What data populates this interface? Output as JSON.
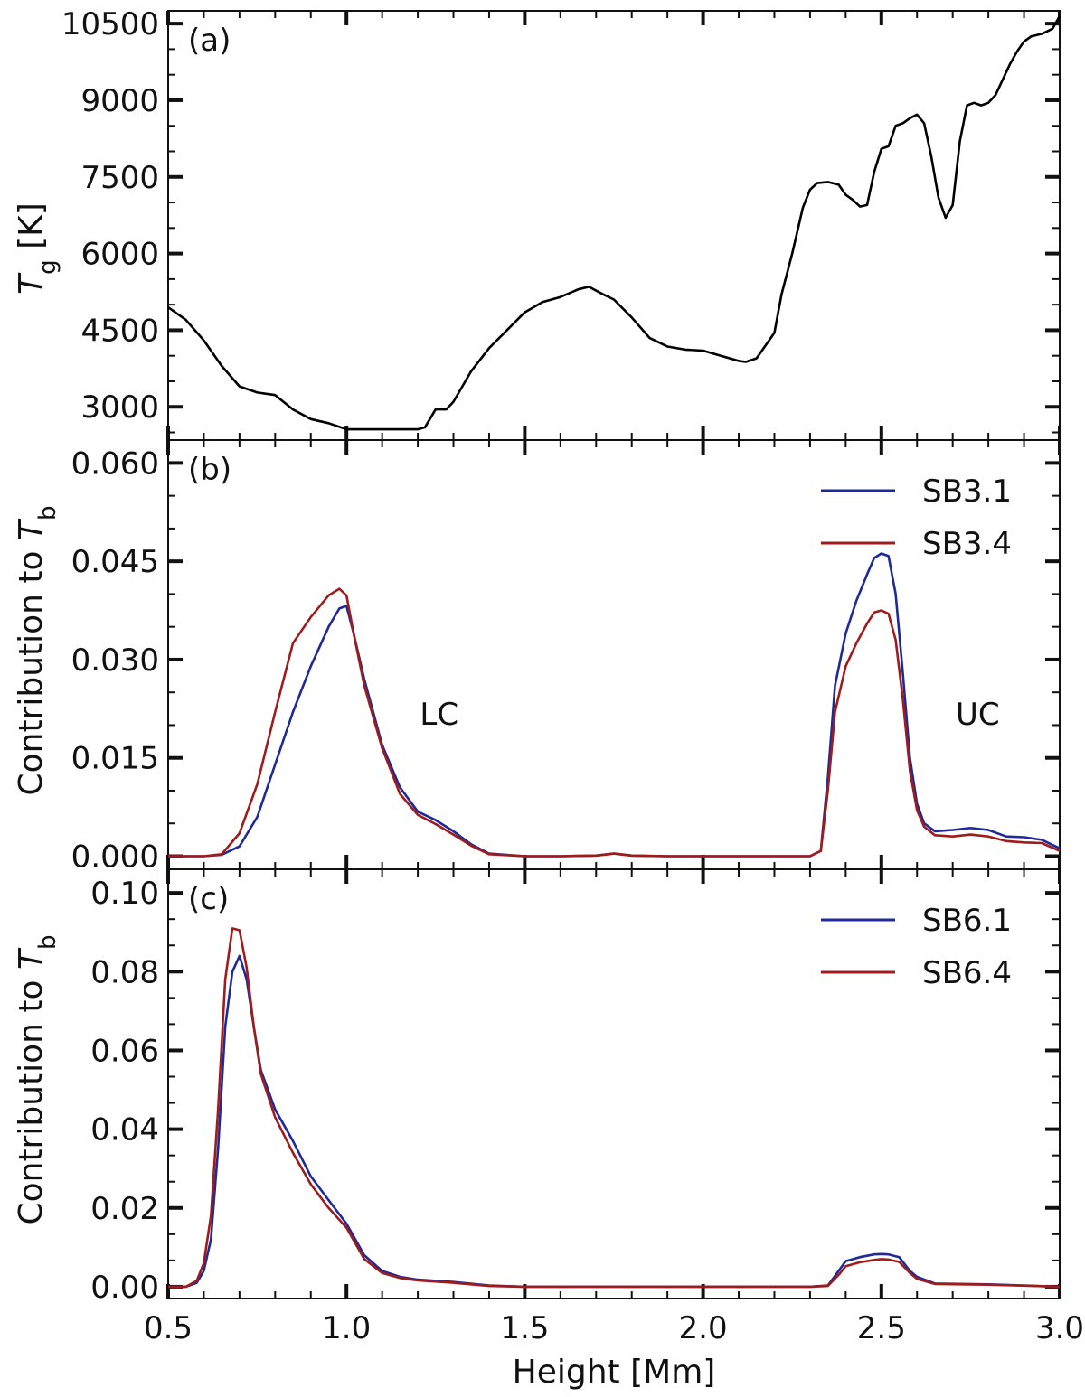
{
  "chart_data": [
    {
      "type": "line",
      "panel_label": "(a)",
      "ylabel": "T",
      "ylabel_sub": "g",
      "ylabel_unit": " [K]",
      "xlim": [
        0.5,
        3.0
      ],
      "ylim": [
        2350,
        10750
      ],
      "yticks": [
        "3000",
        "4500",
        "6000",
        "7500",
        "9000",
        "10500"
      ],
      "ytick_values": [
        3000,
        4500,
        6000,
        7500,
        9000,
        10500
      ],
      "series": [
        {
          "color": "#000000",
          "x": [
            0.5,
            0.55,
            0.6,
            0.65,
            0.7,
            0.75,
            0.8,
            0.85,
            0.9,
            0.95,
            1.0,
            1.05,
            1.1,
            1.15,
            1.2,
            1.22,
            1.25,
            1.28,
            1.3,
            1.35,
            1.4,
            1.45,
            1.5,
            1.55,
            1.6,
            1.65,
            1.68,
            1.72,
            1.75,
            1.8,
            1.85,
            1.9,
            1.95,
            2.0,
            2.05,
            2.1,
            2.12,
            2.15,
            2.2,
            2.22,
            2.25,
            2.28,
            2.3,
            2.32,
            2.35,
            2.38,
            2.4,
            2.42,
            2.44,
            2.46,
            2.48,
            2.5,
            2.52,
            2.54,
            2.56,
            2.58,
            2.6,
            2.62,
            2.64,
            2.66,
            2.68,
            2.7,
            2.72,
            2.74,
            2.76,
            2.78,
            2.8,
            2.82,
            2.84,
            2.86,
            2.88,
            2.9,
            2.92,
            2.95,
            2.98,
            3.0
          ],
          "y": [
            4950,
            4700,
            4300,
            3800,
            3400,
            3280,
            3230,
            2950,
            2760,
            2680,
            2560,
            2560,
            2560,
            2560,
            2560,
            2600,
            2950,
            2950,
            3100,
            3700,
            4150,
            4500,
            4850,
            5050,
            5150,
            5300,
            5350,
            5200,
            5100,
            4750,
            4350,
            4180,
            4120,
            4100,
            4000,
            3900,
            3880,
            3950,
            4450,
            5200,
            6000,
            6900,
            7250,
            7380,
            7400,
            7350,
            7150,
            7050,
            6920,
            6950,
            7600,
            8050,
            8100,
            8500,
            8550,
            8650,
            8720,
            8550,
            7900,
            7100,
            6700,
            6950,
            8200,
            8900,
            8950,
            8900,
            8950,
            9100,
            9400,
            9700,
            9950,
            10150,
            10250,
            10300,
            10400,
            10650
          ]
        }
      ]
    },
    {
      "type": "line",
      "panel_label": "(b)",
      "ylabel": "Contribution to ",
      "ylabel_var": "T",
      "ylabel_sub": "b",
      "xlim": [
        0.5,
        3.0
      ],
      "ylim": [
        -0.002,
        0.0635
      ],
      "yticks": [
        "0.000",
        "0.015",
        "0.030",
        "0.045",
        "0.060"
      ],
      "ytick_values": [
        0.0,
        0.015,
        0.03,
        0.045,
        0.06
      ],
      "annotations": [
        {
          "text": "LC",
          "x": 1.26,
          "y": 0.0217
        },
        {
          "text": "UC",
          "x": 2.77,
          "y": 0.0217
        }
      ],
      "legend_position": "top-right",
      "series": [
        {
          "name": "SB3.1",
          "color": "#1f2a99",
          "x": [
            0.5,
            0.6,
            0.65,
            0.7,
            0.75,
            0.8,
            0.85,
            0.9,
            0.95,
            0.98,
            1.0,
            1.02,
            1.05,
            1.1,
            1.15,
            1.2,
            1.25,
            1.3,
            1.35,
            1.4,
            1.5,
            1.6,
            1.7,
            1.75,
            1.8,
            1.9,
            2.0,
            2.1,
            2.2,
            2.3,
            2.33,
            2.35,
            2.37,
            2.4,
            2.43,
            2.46,
            2.48,
            2.5,
            2.52,
            2.54,
            2.56,
            2.58,
            2.6,
            2.62,
            2.65,
            2.7,
            2.75,
            2.8,
            2.85,
            2.9,
            2.95,
            3.0
          ],
          "y": [
            0.0,
            0.0,
            0.0002,
            0.0015,
            0.006,
            0.014,
            0.022,
            0.029,
            0.035,
            0.0378,
            0.0382,
            0.034,
            0.027,
            0.017,
            0.0105,
            0.0068,
            0.0055,
            0.0038,
            0.0018,
            0.0004,
            0.0,
            0.0,
            0.0001,
            0.0004,
            0.0001,
            0.0,
            0.0,
            0.0,
            0.0,
            0.0,
            0.0008,
            0.012,
            0.026,
            0.034,
            0.039,
            0.043,
            0.0455,
            0.0462,
            0.0458,
            0.04,
            0.028,
            0.015,
            0.008,
            0.005,
            0.0038,
            0.004,
            0.0043,
            0.004,
            0.003,
            0.0029,
            0.0025,
            0.0012
          ]
        },
        {
          "name": "SB3.4",
          "color": "#a01c1c",
          "x": [
            0.5,
            0.6,
            0.65,
            0.7,
            0.75,
            0.8,
            0.85,
            0.9,
            0.95,
            0.98,
            1.0,
            1.02,
            1.05,
            1.1,
            1.15,
            1.2,
            1.25,
            1.3,
            1.35,
            1.4,
            1.5,
            1.6,
            1.7,
            1.75,
            1.8,
            1.9,
            2.0,
            2.1,
            2.2,
            2.3,
            2.33,
            2.35,
            2.37,
            2.4,
            2.43,
            2.46,
            2.48,
            2.5,
            2.52,
            2.54,
            2.56,
            2.58,
            2.6,
            2.62,
            2.65,
            2.7,
            2.75,
            2.8,
            2.85,
            2.9,
            2.95,
            3.0
          ],
          "y": [
            0.0,
            0.0,
            0.0003,
            0.0035,
            0.011,
            0.022,
            0.0325,
            0.0365,
            0.0398,
            0.0408,
            0.0398,
            0.034,
            0.026,
            0.0165,
            0.0095,
            0.0063,
            0.0049,
            0.0033,
            0.0016,
            0.0003,
            0.0,
            0.0,
            0.0001,
            0.0004,
            0.0001,
            0.0,
            0.0,
            0.0,
            0.0,
            0.0,
            0.0008,
            0.01,
            0.022,
            0.029,
            0.0325,
            0.0355,
            0.0372,
            0.0375,
            0.037,
            0.033,
            0.024,
            0.013,
            0.007,
            0.0045,
            0.0032,
            0.003,
            0.0033,
            0.003,
            0.0023,
            0.0021,
            0.002,
            0.0008
          ]
        }
      ]
    },
    {
      "type": "line",
      "panel_label": "(c)",
      "xlabel": "Height [Mm]",
      "ylabel": "Contribution to ",
      "ylabel_var": "T",
      "ylabel_sub": "b",
      "xlim": [
        0.5,
        3.0
      ],
      "ylim": [
        -0.003,
        0.106
      ],
      "yticks": [
        "0.00",
        "0.02",
        "0.04",
        "0.06",
        "0.08",
        "0.10"
      ],
      "ytick_values": [
        0.0,
        0.02,
        0.04,
        0.06,
        0.08,
        0.1
      ],
      "xticks": [
        "0.5",
        "1.0",
        "1.5",
        "2.0",
        "2.5",
        "3.0"
      ],
      "xtick_values": [
        0.5,
        1.0,
        1.5,
        2.0,
        2.5,
        3.0
      ],
      "legend_position": "top-right",
      "series": [
        {
          "name": "SB6.1",
          "color": "#1f2a99",
          "x": [
            0.5,
            0.55,
            0.58,
            0.6,
            0.62,
            0.64,
            0.66,
            0.68,
            0.7,
            0.72,
            0.74,
            0.76,
            0.8,
            0.85,
            0.9,
            0.95,
            1.0,
            1.05,
            1.1,
            1.15,
            1.2,
            1.3,
            1.4,
            1.5,
            1.7,
            2.0,
            2.2,
            2.3,
            2.35,
            2.38,
            2.4,
            2.44,
            2.48,
            2.5,
            2.52,
            2.55,
            2.58,
            2.6,
            2.65,
            2.8,
            3.0
          ],
          "y": [
            0.0,
            0.0,
            0.001,
            0.004,
            0.012,
            0.035,
            0.066,
            0.08,
            0.084,
            0.078,
            0.066,
            0.055,
            0.045,
            0.037,
            0.028,
            0.022,
            0.016,
            0.008,
            0.004,
            0.0025,
            0.0018,
            0.0012,
            0.0003,
            0.0,
            0.0,
            0.0,
            0.0,
            0.0,
            0.0003,
            0.004,
            0.0065,
            0.0075,
            0.0082,
            0.0083,
            0.0082,
            0.0075,
            0.004,
            0.0025,
            0.0008,
            0.0006,
            0.0
          ]
        },
        {
          "name": "SB6.4",
          "color": "#a01c1c",
          "x": [
            0.5,
            0.55,
            0.58,
            0.6,
            0.62,
            0.64,
            0.66,
            0.68,
            0.7,
            0.72,
            0.74,
            0.76,
            0.8,
            0.85,
            0.9,
            0.95,
            1.0,
            1.05,
            1.1,
            1.15,
            1.2,
            1.3,
            1.4,
            1.5,
            1.7,
            2.0,
            2.2,
            2.3,
            2.35,
            2.38,
            2.4,
            2.44,
            2.48,
            2.5,
            2.52,
            2.55,
            2.58,
            2.6,
            2.65,
            2.8,
            3.0
          ],
          "y": [
            0.0,
            0.0,
            0.0015,
            0.006,
            0.018,
            0.045,
            0.078,
            0.091,
            0.0905,
            0.081,
            0.066,
            0.054,
            0.043,
            0.034,
            0.026,
            0.02,
            0.015,
            0.007,
            0.0035,
            0.0022,
            0.0016,
            0.001,
            0.0002,
            0.0,
            0.0,
            0.0,
            0.0,
            0.0,
            0.0002,
            0.003,
            0.0052,
            0.0062,
            0.0068,
            0.007,
            0.0069,
            0.0063,
            0.0035,
            0.002,
            0.0007,
            0.0005,
            0.0
          ]
        }
      ]
    }
  ]
}
